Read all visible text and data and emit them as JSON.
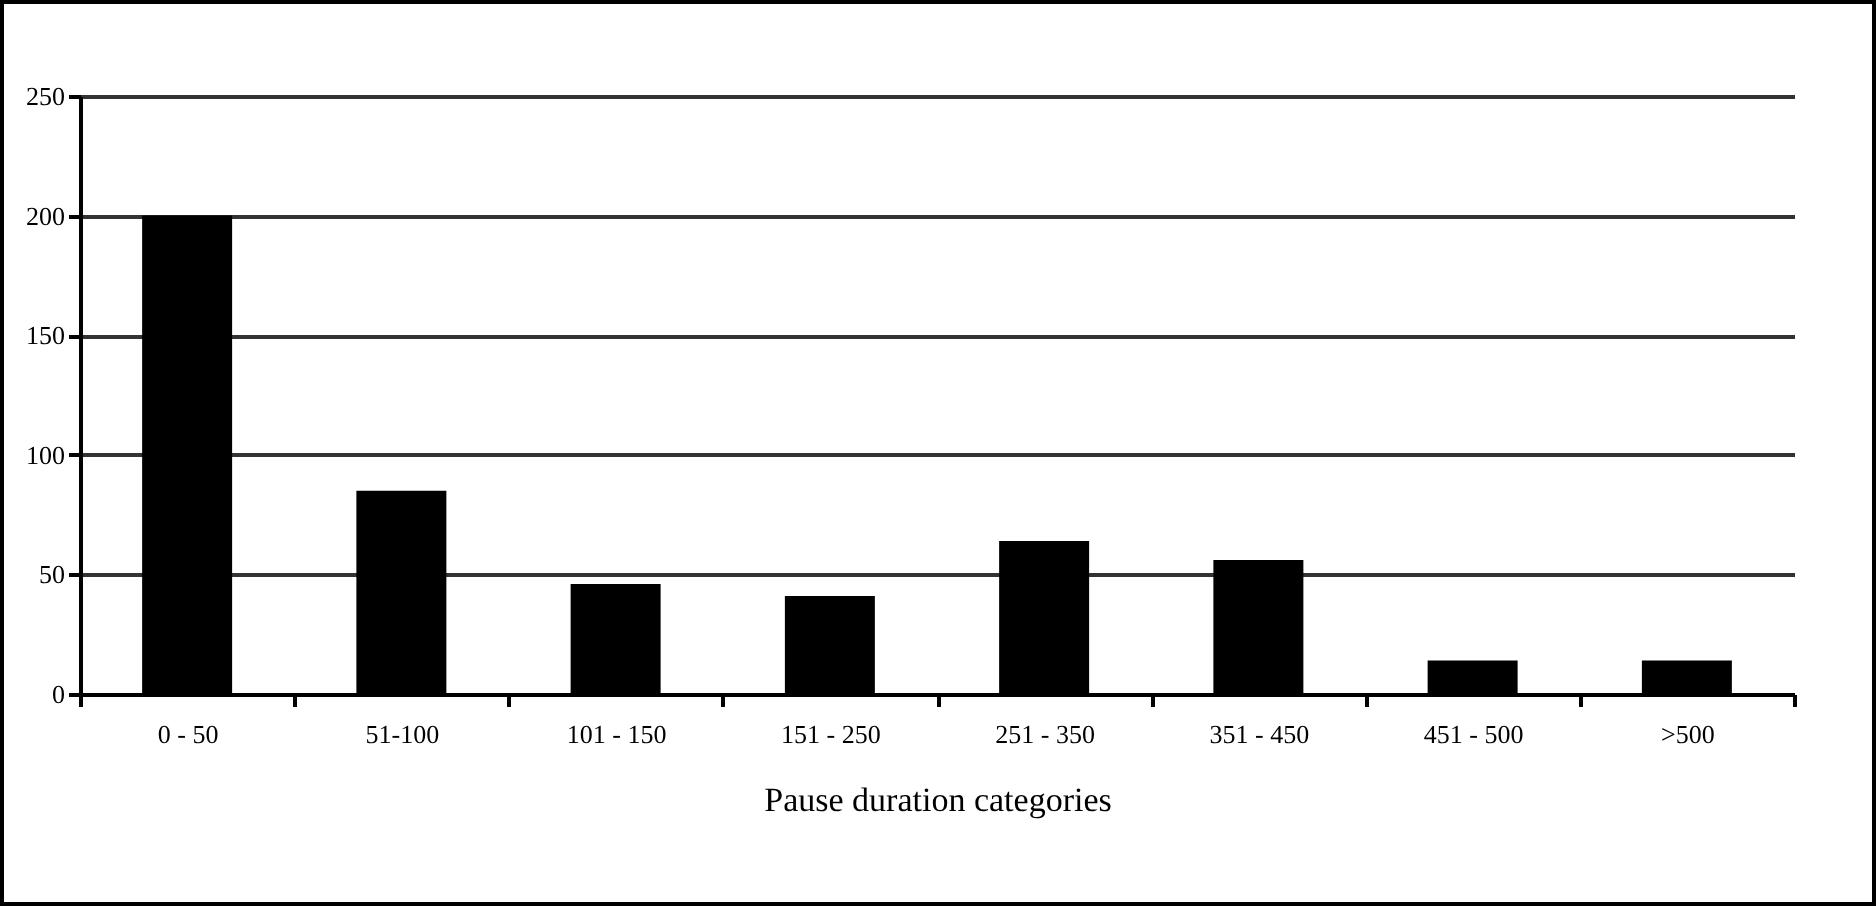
{
  "chart_data": {
    "type": "bar",
    "xlabel": "Pause duration categories",
    "categories": [
      "0 - 50",
      "51-100",
      "101 - 150",
      "151 - 250",
      "251 - 350",
      "351 - 450",
      "451 - 500",
      ">500"
    ],
    "values": [
      200,
      85,
      46,
      41,
      64,
      56,
      14,
      14
    ],
    "color": "#000000",
    "ylim": [
      0,
      250
    ],
    "yticks": [
      0,
      50,
      100,
      150,
      200,
      250
    ],
    "grid": "y"
  }
}
